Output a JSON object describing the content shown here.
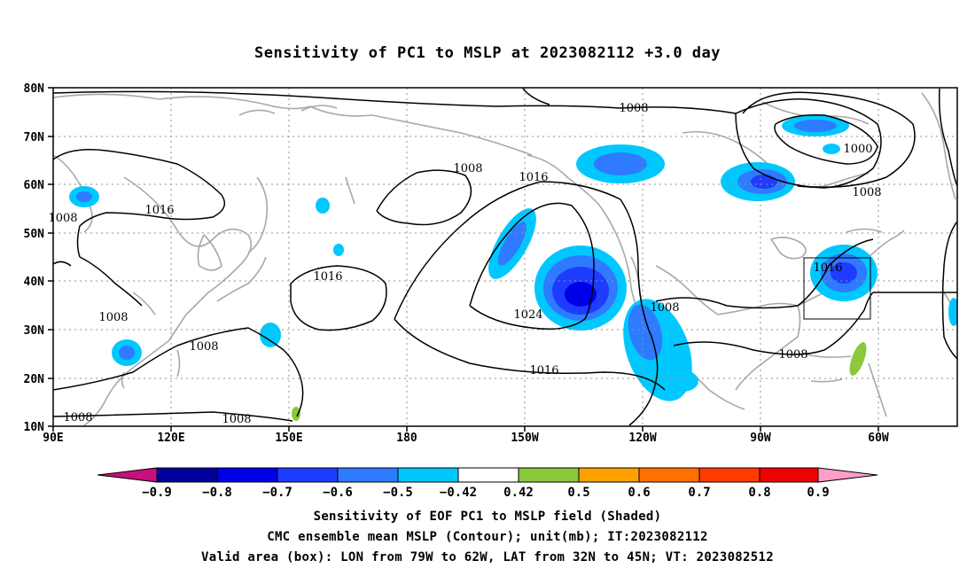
{
  "title": "Sensitivity of PC1 to MSLP at 2023082112 +3.0 day",
  "map": {
    "lat_labels": [
      "80N",
      "70N",
      "60N",
      "50N",
      "40N",
      "30N",
      "20N",
      "10N"
    ],
    "lon_labels": [
      "90E",
      "120E",
      "150E",
      "180",
      "150W",
      "120W",
      "90W",
      "60W"
    ],
    "contour_labels": [
      "1008",
      "1016",
      "1008",
      "1016",
      "1000",
      "1008",
      "1008",
      "1016",
      "1024",
      "1016",
      "1008",
      "1008",
      "1008",
      "1008",
      "1016",
      "1008",
      "1008",
      "1008"
    ]
  },
  "colorbar": {
    "colors": [
      "#c8107c",
      "#00009a",
      "#0000e6",
      "#1e3cff",
      "#2e7bff",
      "#00c8ff",
      "#ffffff",
      "#8cc83c",
      "#ffa000",
      "#ff7000",
      "#ff3c00",
      "#f00000",
      "#ff9ec8"
    ],
    "labels": [
      "−0.9",
      "−0.8",
      "−0.7",
      "−0.6",
      "−0.5",
      "−0.42",
      "0.42",
      "0.5",
      "0.6",
      "0.7",
      "0.8",
      "0.9"
    ]
  },
  "captions": {
    "line1": "Sensitivity of EOF PC1 to MSLP field (Shaded)",
    "line2": "CMC ensemble mean MSLP (Contour); unit(mb); IT:2023082112",
    "line3": "Valid area (box): LON from 79W to 62W, LAT from 32N to 45N; VT: 2023082512"
  }
}
